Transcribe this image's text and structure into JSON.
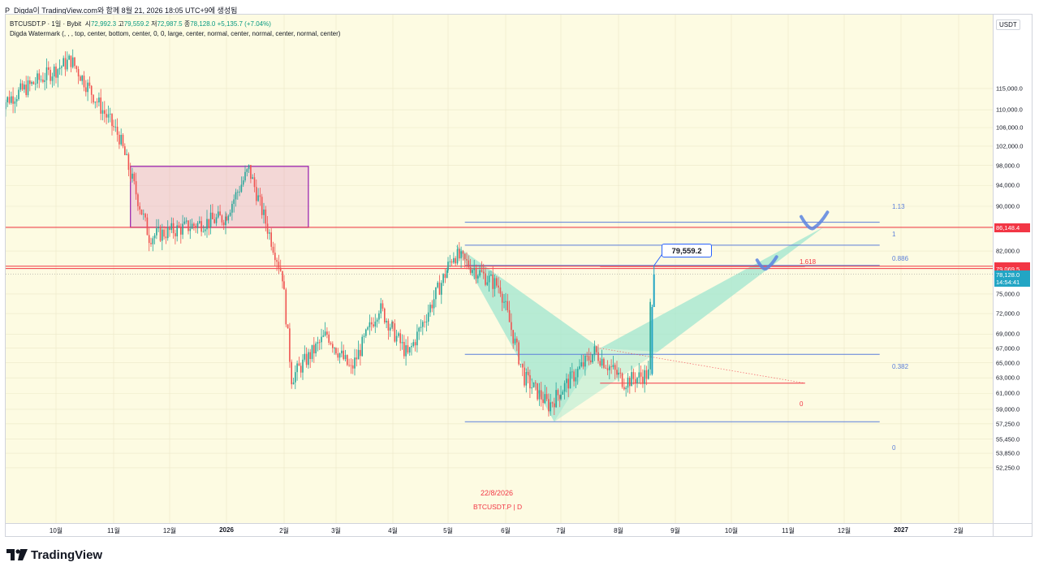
{
  "header": {
    "text": "P_Digda이 TradingView.com와 함께 8월 21, 2026 18:05 UTC+9에 생성됨"
  },
  "legend": {
    "symbol": "BTCUSDT.P · 1일 · Bybit",
    "open_label": "시",
    "open": "72,992.3",
    "high_label": "고",
    "high": "79,559.2",
    "low_label": "저",
    "low": "72,987.5",
    "close_label": "종",
    "close": "78,128.0",
    "change": "+5,135.7 (+7.04%)",
    "indicator": "Digda Watermark (, , , top, center, bottom, center, 0, 0, large, center, normal, center, normal, center, normal, center)"
  },
  "price_axis": {
    "unit": "USDT",
    "ticks": [
      "115,000.0",
      "110,000.0",
      "106,000.0",
      "102,000.0",
      "98,000.0",
      "94,000.0",
      "90,000.0",
      "86,000.0",
      "82,000.0",
      "75,000.0",
      "72,000.0",
      "69,000.0",
      "67,000.0",
      "65,000.0",
      "63,000.0",
      "61,000.0",
      "59,000.0",
      "57,250.0",
      "55,450.0",
      "53,850.0",
      "52,250.0"
    ],
    "labels": {
      "resistance": "86,148.4",
      "level_a": "79,457.4",
      "level_b": "79,069.5",
      "last_price": "78,128.0",
      "countdown": "14:54:41"
    }
  },
  "time_axis": {
    "ticks": [
      "10월",
      "11월",
      "12월",
      "2026",
      "2월",
      "3월",
      "4월",
      "5월",
      "6월",
      "7월",
      "8월",
      "9월",
      "10월",
      "11월",
      "12월",
      "2027",
      "2월"
    ]
  },
  "fib_retracement": {
    "levels": [
      "1.13",
      "1",
      "0.886",
      "0.382",
      "0"
    ]
  },
  "fib_extension": {
    "levels": [
      "1.618",
      "0"
    ]
  },
  "callout": {
    "value": "79,559.2"
  },
  "watermark": {
    "date": "22/8/2026",
    "symbol": "BTCUSDT.P | D"
  },
  "brand": {
    "name": "TradingView"
  },
  "colors": {
    "background": "#fdfbe2",
    "candle_up": "#26a69a",
    "candle_down": "#ef5350",
    "resistance_line": "#f23645",
    "fib_line": "#5b7ed9",
    "range_box": "#9c27b0",
    "pattern_fill": "#9fe6cf",
    "last_price": "#22a5c4"
  },
  "chart_data": {
    "type": "candlestick",
    "symbol": "BTCUSDT.P",
    "timeframe": "1일",
    "exchange": "Bybit",
    "ylim": [
      52250,
      118000
    ],
    "price_scale": "log",
    "horizontal_lines": [
      86148.4,
      79457.4,
      79069.5
    ],
    "range_box": {
      "from": "2025-11-10",
      "to": "2026-02-14",
      "top": 97800,
      "bottom": 86148.4
    },
    "last_candle": {
      "open": 72992.3,
      "high": 79559.2,
      "low": 72987.5,
      "close": 78128.0
    },
    "fib_retracement": {
      "from": "2026-05-10",
      "to": "2026-12-20",
      "low": 57500,
      "high": 83000,
      "ratios": [
        0,
        0.382,
        0.886,
        1,
        1.13
      ]
    },
    "fib_extension": {
      "from": "2026-07-22",
      "to": "2026-11-10",
      "ratios": [
        0,
        1.618
      ],
      "prices": [
        62300,
        79400
      ]
    },
    "pattern_points": [
      {
        "date": "2026-05-05",
        "price": 83000
      },
      {
        "date": "2026-06-27",
        "price": 57500
      },
      {
        "date": "2026-07-22",
        "price": 67000
      },
      {
        "date": "2026-11-20",
        "price": 86200
      }
    ],
    "projection_marks": [
      {
        "date": "2026-10-20",
        "price": 79400
      },
      {
        "date": "2026-11-15",
        "price": 86500
      }
    ],
    "anchor_points": [
      {
        "date": "2025-09-01",
        "price": 111000
      },
      {
        "date": "2025-10-10",
        "price": 122000
      },
      {
        "date": "2025-11-05",
        "price": 104000
      },
      {
        "date": "2025-11-21",
        "price": 84500
      },
      {
        "date": "2026-01-01",
        "price": 88000
      },
      {
        "date": "2026-01-14",
        "price": 97200
      },
      {
        "date": "2026-02-01",
        "price": 78000
      },
      {
        "date": "2026-02-06",
        "price": 63000
      },
      {
        "date": "2026-02-25",
        "price": 69000
      },
      {
        "date": "2026-03-10",
        "price": 64000
      },
      {
        "date": "2026-03-25",
        "price": 73000
      },
      {
        "date": "2026-04-10",
        "price": 66000
      },
      {
        "date": "2026-05-05",
        "price": 81500
      },
      {
        "date": "2026-05-30",
        "price": 76000
      },
      {
        "date": "2026-06-12",
        "price": 63000
      },
      {
        "date": "2026-06-25",
        "price": 59500
      },
      {
        "date": "2026-07-20",
        "price": 66500
      },
      {
        "date": "2026-08-05",
        "price": 62500
      },
      {
        "date": "2026-08-18",
        "price": 63500
      },
      {
        "date": "2026-08-19",
        "price": 72992.3
      },
      {
        "date": "2026-08-20",
        "price": 78128.0
      }
    ]
  }
}
